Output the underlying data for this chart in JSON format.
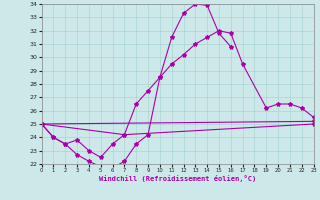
{
  "xlabel": "Windchill (Refroidissement éolien,°C)",
  "curve1_x": [
    0,
    1,
    2,
    3,
    4,
    5,
    6,
    7,
    8,
    9,
    10,
    11,
    12,
    13,
    14,
    15,
    16
  ],
  "curve1_y": [
    25.0,
    24.0,
    23.5,
    22.7,
    22.2,
    21.8,
    21.7,
    22.2,
    23.5,
    24.2,
    28.5,
    31.5,
    33.3,
    34.0,
    33.9,
    31.8,
    30.8
  ],
  "curve2_x": [
    0,
    7,
    8,
    9,
    10,
    11,
    12,
    13,
    14,
    15,
    16,
    17,
    19,
    20,
    21,
    22,
    23
  ],
  "curve2_y": [
    25.0,
    24.2,
    26.5,
    27.5,
    28.5,
    29.5,
    30.2,
    31.0,
    31.5,
    32.0,
    31.8,
    29.5,
    26.2,
    26.5,
    26.5,
    26.2,
    25.5
  ],
  "curve3_x": [
    0,
    1,
    2,
    3,
    4,
    5,
    6,
    7,
    23
  ],
  "curve3_y": [
    25.0,
    24.0,
    23.5,
    23.8,
    23.0,
    22.5,
    23.5,
    24.2,
    25.0
  ],
  "curve4_x": [
    0,
    23
  ],
  "curve4_y": [
    25.0,
    25.2
  ],
  "line_color": "#aa00aa",
  "bg_color": "#cce8e8",
  "grid_color": "#aad4d4",
  "ylim": [
    22,
    34
  ],
  "xlim": [
    0,
    23
  ],
  "yticks": [
    22,
    23,
    24,
    25,
    26,
    27,
    28,
    29,
    30,
    31,
    32,
    33,
    34
  ],
  "xticks": [
    0,
    1,
    2,
    3,
    4,
    5,
    6,
    7,
    8,
    9,
    10,
    11,
    12,
    13,
    14,
    15,
    16,
    17,
    18,
    19,
    20,
    21,
    22,
    23
  ]
}
